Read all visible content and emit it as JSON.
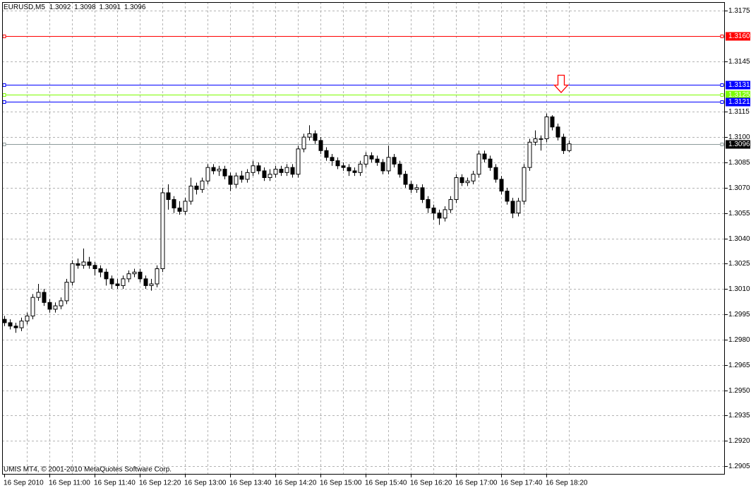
{
  "chart_data": {
    "type": "candlestick",
    "title": "EURUSD,M5",
    "footer": "UMIS MT4, © 2001-2010 MetaQuotes Software Corp.",
    "categories": [
      "16 Sep 2010",
      null,
      null,
      null,
      null,
      null,
      null,
      null,
      "16 Sep 11:00",
      null,
      null,
      null,
      null,
      null,
      null,
      null,
      "16 Sep 11:40",
      null,
      null,
      null,
      null,
      null,
      null,
      null,
      "16 Sep 12:20",
      null,
      null,
      null,
      null,
      null,
      null,
      null,
      "16 Sep 13:00",
      null,
      null,
      null,
      null,
      null,
      null,
      null,
      "16 Sep 13:40",
      null,
      null,
      null,
      null,
      null,
      null,
      null,
      "16 Sep 14:20",
      null,
      null,
      null,
      null,
      null,
      null,
      null,
      "16 Sep 15:00",
      null,
      null,
      null,
      null,
      null,
      null,
      null,
      "16 Sep 15:40",
      null,
      null,
      null,
      null,
      null,
      null,
      null,
      "16 Sep 16:20",
      null,
      null,
      null,
      null,
      null,
      null,
      null,
      "16 Sep 17:00",
      null,
      null,
      null,
      null,
      null,
      null,
      null,
      "16 Sep 17:40",
      null,
      null,
      null,
      null,
      null,
      null,
      null,
      "16 Sep 18:20",
      null,
      null,
      null,
      null
    ],
    "open": [
      1.2992,
      1.299,
      1.2988,
      1.2987,
      1.2991,
      1.2994,
      1.3005,
      1.3008,
      1.3002,
      1.2998,
      1.3,
      1.3003,
      1.3014,
      1.3025,
      1.3024,
      1.3026,
      1.3024,
      1.3022,
      1.302,
      1.3016,
      1.3013,
      1.3012,
      1.3016,
      1.3019,
      1.302,
      1.3016,
      1.3012,
      1.3013,
      1.3022,
      1.3067,
      1.3063,
      1.3058,
      1.3056,
      1.3062,
      1.3071,
      1.3069,
      1.3074,
      1.3082,
      1.308,
      1.3081,
      1.3077,
      1.3072,
      1.3077,
      1.3075,
      1.3079,
      1.3083,
      1.308,
      1.3076,
      1.3078,
      1.3081,
      1.3079,
      1.3082,
      1.3078,
      1.3093,
      1.31,
      1.3102,
      1.3098,
      1.3092,
      1.3088,
      1.3086,
      1.3083,
      1.3082,
      1.308,
      1.3079,
      1.3084,
      1.3089,
      1.3087,
      1.3085,
      1.308,
      1.3088,
      1.3084,
      1.3078,
      1.3072,
      1.3069,
      1.307,
      1.3063,
      1.3058,
      1.3055,
      1.3052,
      1.3057,
      1.3063,
      1.3076,
      1.3073,
      1.3074,
      1.3078,
      1.309,
      1.3087,
      1.3082,
      1.3075,
      1.3068,
      1.3062,
      1.3055,
      1.3062,
      1.3082,
      1.3097,
      1.3099,
      1.3099,
      1.3112,
      1.3106,
      1.31,
      1.3092
    ],
    "high": [
      1.2994,
      1.2992,
      1.299,
      1.2993,
      1.2996,
      1.3007,
      1.3013,
      1.301,
      1.3004,
      1.3002,
      1.3005,
      1.3016,
      1.3027,
      1.3028,
      1.3034,
      1.3029,
      1.3026,
      1.3024,
      1.3022,
      1.3018,
      1.3016,
      1.3018,
      1.3021,
      1.3022,
      1.3022,
      1.3018,
      1.3016,
      1.3024,
      1.307,
      1.3072,
      1.3065,
      1.3062,
      1.3064,
      1.3076,
      1.3073,
      1.3076,
      1.3084,
      1.3084,
      1.3083,
      1.3083,
      1.3079,
      1.3079,
      1.308,
      1.3081,
      1.3086,
      1.3085,
      1.3082,
      1.3081,
      1.3083,
      1.3083,
      1.3084,
      1.3084,
      1.3095,
      1.3102,
      1.3107,
      1.3104,
      1.31,
      1.3094,
      1.309,
      1.3088,
      1.3085,
      1.3084,
      1.3082,
      1.3086,
      1.3091,
      1.3091,
      1.3089,
      1.3087,
      1.3095,
      1.309,
      1.3086,
      1.308,
      1.3074,
      1.3072,
      1.3072,
      1.3065,
      1.306,
      1.3057,
      1.3059,
      1.3065,
      1.3078,
      1.3078,
      1.3076,
      1.308,
      1.3092,
      1.3092,
      1.3089,
      1.3084,
      1.3077,
      1.307,
      1.3064,
      1.3064,
      1.3084,
      1.3099,
      1.3104,
      1.3101,
      1.3114,
      1.3113,
      1.3108,
      1.3102,
      1.3098
    ],
    "low": [
      1.2988,
      1.2986,
      1.2984,
      1.2985,
      1.2989,
      1.2992,
      1.3003,
      1.3,
      1.2996,
      1.2996,
      1.2998,
      1.3001,
      1.3012,
      1.3022,
      1.3022,
      1.3022,
      1.3018,
      1.3017,
      1.3012,
      1.301,
      1.301,
      1.301,
      1.3014,
      1.3017,
      1.3014,
      1.301,
      1.3009,
      1.3011,
      1.302,
      1.3057,
      1.3055,
      1.3054,
      1.3054,
      1.306,
      1.3066,
      1.3067,
      1.3072,
      1.3078,
      1.3077,
      1.3075,
      1.3068,
      1.307,
      1.3073,
      1.3073,
      1.3077,
      1.3078,
      1.3074,
      1.3074,
      1.3076,
      1.3077,
      1.3077,
      1.3076,
      1.3076,
      1.3091,
      1.3098,
      1.3096,
      1.309,
      1.3086,
      1.3083,
      1.3081,
      1.308,
      1.3077,
      1.3077,
      1.3077,
      1.3082,
      1.3085,
      1.3083,
      1.3078,
      1.3078,
      1.3082,
      1.3076,
      1.307,
      1.3067,
      1.3067,
      1.3061,
      1.3055,
      1.3051,
      1.3048,
      1.305,
      1.3055,
      1.3061,
      1.3071,
      1.3071,
      1.3072,
      1.3076,
      1.3085,
      1.308,
      1.3073,
      1.3066,
      1.306,
      1.3052,
      1.3053,
      1.306,
      1.308,
      1.3095,
      1.3092,
      1.3097,
      1.3104,
      1.3098,
      1.309,
      1.3091
    ],
    "close": [
      1.299,
      1.2988,
      1.2987,
      1.2991,
      1.2994,
      1.3005,
      1.3008,
      1.3002,
      1.2998,
      1.3,
      1.3003,
      1.3014,
      1.3025,
      1.3024,
      1.3026,
      1.3024,
      1.3022,
      1.302,
      1.3016,
      1.3013,
      1.3012,
      1.3016,
      1.3019,
      1.302,
      1.3016,
      1.3012,
      1.3013,
      1.3022,
      1.3067,
      1.3063,
      1.3058,
      1.3056,
      1.3062,
      1.3071,
      1.3069,
      1.3074,
      1.3082,
      1.308,
      1.3081,
      1.3077,
      1.3072,
      1.3077,
      1.3075,
      1.3079,
      1.3083,
      1.308,
      1.3076,
      1.3078,
      1.3081,
      1.3079,
      1.3082,
      1.3078,
      1.3093,
      1.31,
      1.3102,
      1.3098,
      1.3092,
      1.3088,
      1.3086,
      1.3083,
      1.3082,
      1.308,
      1.3079,
      1.3084,
      1.3089,
      1.3087,
      1.3085,
      1.308,
      1.3088,
      1.3084,
      1.3078,
      1.3072,
      1.3069,
      1.307,
      1.3063,
      1.3058,
      1.3055,
      1.3052,
      1.3057,
      1.3063,
      1.3076,
      1.3073,
      1.3074,
      1.3078,
      1.309,
      1.3087,
      1.3082,
      1.3075,
      1.3068,
      1.3062,
      1.3055,
      1.3062,
      1.3082,
      1.3097,
      1.3099,
      1.3099,
      1.3112,
      1.3106,
      1.31,
      1.3092,
      1.3096
    ],
    "up_color": "#ffffff",
    "down_color": "#000000",
    "ylim": [
      1.29,
      1.318
    ],
    "yticks": [
      1.2905,
      {
        "value": 1.292,
        "label": "1.2920"
      },
      1.2935,
      {
        "value": 1.295,
        "label": "1.2950"
      },
      1.2965,
      {
        "value": 1.298,
        "label": "1.2980"
      },
      1.2995,
      {
        "value": 1.301,
        "label": "1.3010"
      },
      1.3025,
      {
        "value": 1.304,
        "label": "1.3040"
      },
      1.3055,
      {
        "value": 1.307,
        "label": "1.3070"
      },
      1.3085,
      {
        "value": 1.31,
        "label": "1.3100"
      },
      1.3115,
      1.3145,
      1.3175
    ],
    "grid": true,
    "levels": [
      {
        "value": 1.316,
        "label": "1.3160",
        "color": "#ff0000",
        "label_color": "#ff0000"
      },
      {
        "value": 1.3131,
        "color": "#0000ff",
        "label_color": "#0000ff"
      },
      {
        "value": 1.3125,
        "color": "#7cfc00",
        "label_color": "#7cfc00"
      },
      {
        "value": 1.3121,
        "color": "#0000ff",
        "label_color": "#0000ff"
      },
      {
        "value": 1.3096,
        "color": "#8c9a9a",
        "label_color": "#000000"
      }
    ]
  }
}
